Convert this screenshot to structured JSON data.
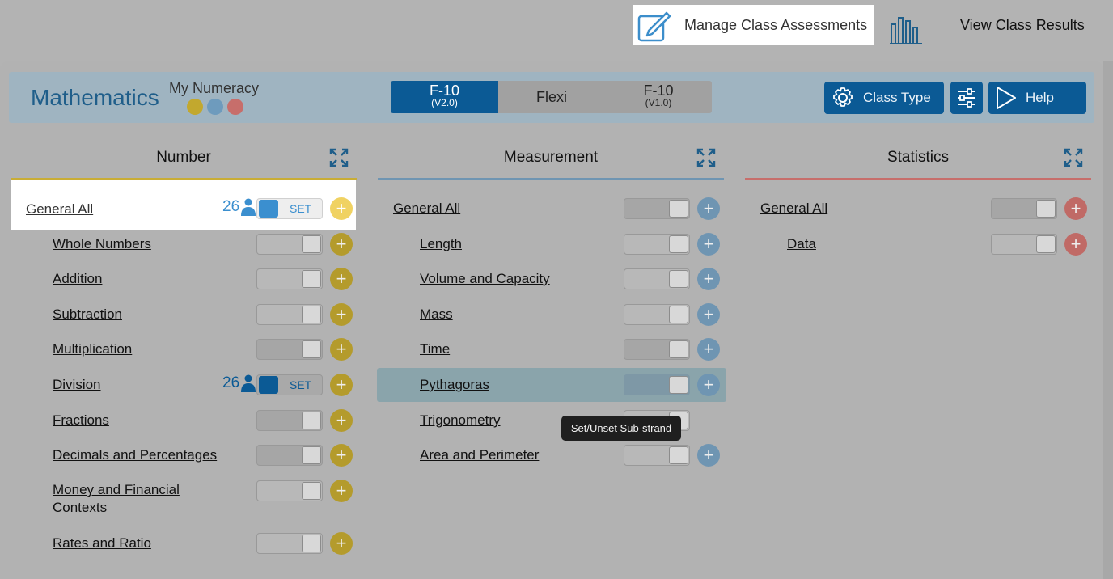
{
  "topnav": {
    "manage_label": "Manage Class Assessments",
    "results_label": "View Class Results"
  },
  "header": {
    "subject": "Mathematics",
    "product": "My Numeracy",
    "levels": [
      {
        "label": "F-10",
        "sub": "(V2.0)",
        "active": true
      },
      {
        "label": "Flexi",
        "sub": ""
      },
      {
        "label": "F-10",
        "sub": "(V1.0)"
      }
    ],
    "class_type_label": "Class Type",
    "help_label": "Help"
  },
  "colors": {
    "brand_blue": "#0b5a95",
    "number_gold": "#b49b2c",
    "measurement_blue": "#6f95b2",
    "statistics_red": "#c06a66"
  },
  "columns": {
    "number": {
      "title": "Number",
      "rows": [
        {
          "name": "General All",
          "count": "26",
          "set_label": "SET"
        },
        {
          "name": "Whole Numbers"
        },
        {
          "name": "Addition"
        },
        {
          "name": "Subtraction"
        },
        {
          "name": "Multiplication"
        },
        {
          "name": "Division",
          "count": "26",
          "set_label": "SET"
        },
        {
          "name": "Fractions"
        },
        {
          "name": "Decimals and Percentages"
        },
        {
          "name": "Money and Financial Contexts"
        },
        {
          "name": "Rates and Ratio"
        }
      ]
    },
    "measurement": {
      "title": "Measurement",
      "rows": [
        {
          "name": "General All"
        },
        {
          "name": "Length"
        },
        {
          "name": "Volume and Capacity"
        },
        {
          "name": "Mass"
        },
        {
          "name": "Time"
        },
        {
          "name": "Pythagoras"
        },
        {
          "name": "Trigonometry"
        },
        {
          "name": "Area and Perimeter"
        }
      ]
    },
    "statistics": {
      "title": "Statistics",
      "rows": [
        {
          "name": "General All"
        },
        {
          "name": "Data"
        }
      ]
    }
  },
  "tooltip": "Set/Unset Sub-strand",
  "plus_symbol": "+"
}
